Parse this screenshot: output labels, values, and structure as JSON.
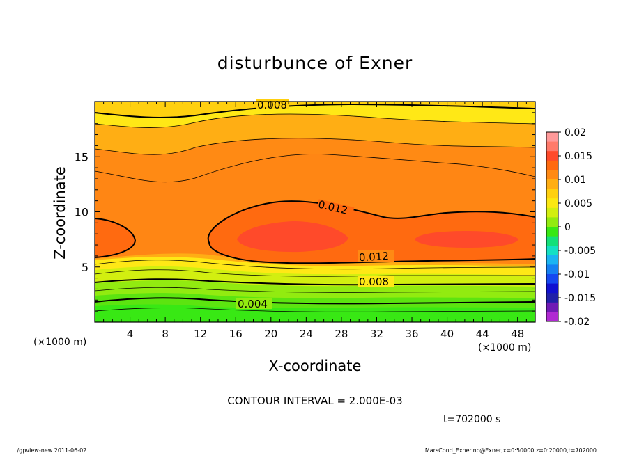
{
  "chart_data": {
    "type": "contour",
    "title": "disturbunce of Exner",
    "xlabel": "X-coordinate",
    "ylabel": "Z-coordinate",
    "x_unit_label": "(×1000 m)",
    "y_unit_label": "(×1000 m)",
    "xlim": [
      0,
      50
    ],
    "ylim": [
      0,
      20
    ],
    "x_ticks": [
      "4",
      "8",
      "12",
      "16",
      "20",
      "24",
      "28",
      "32",
      "36",
      "40",
      "44",
      "48"
    ],
    "y_ticks": [
      "5",
      "10",
      "15"
    ],
    "colorbar": {
      "levels": [
        "0.02",
        "0.015",
        "0.01",
        "0.005",
        "0",
        "-0.005",
        "-0.01",
        "-0.015",
        "-0.02"
      ],
      "colors": [
        "#ff9a9a",
        "#ff7a6a",
        "#ff4a2a",
        "#ff6a10",
        "#ff8a14",
        "#ffae14",
        "#ffd010",
        "#fbe812",
        "#d2ef10",
        "#92eb10",
        "#38e814",
        "#14e07a",
        "#14e0c4",
        "#1ab4f2",
        "#1480f2",
        "#1448f0",
        "#1010d0",
        "#2020a8",
        "#701ab4",
        "#b02ad2"
      ]
    },
    "contour_labels": [
      "0.008",
      "0.012",
      "0.012",
      "0.008",
      "0.004"
    ],
    "contour_interval_text": "CONTOUR INTERVAL = 2.000E-03",
    "time_text": "t=702000 s",
    "grid": false
  },
  "footer": {
    "left": "./gpview-new   2011-06-02",
    "right": "MarsCond_Exner.nc@Exner,x=0:50000,z=0:20000,t=702000"
  }
}
